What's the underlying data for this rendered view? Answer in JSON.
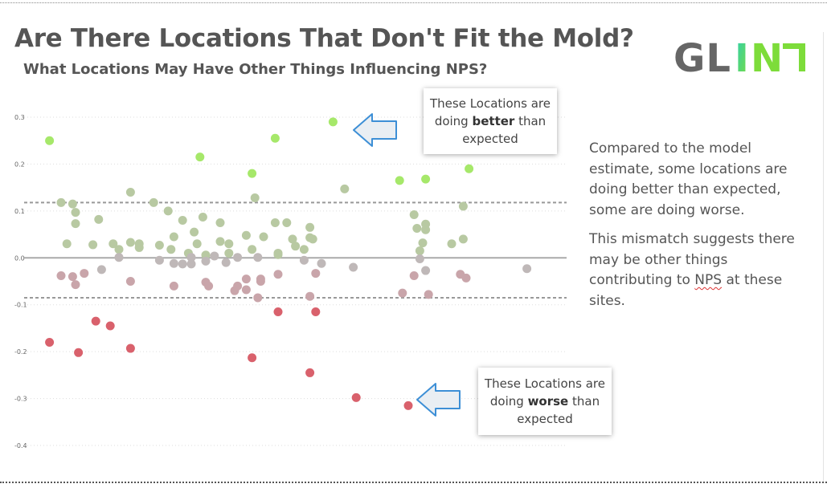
{
  "header": {
    "title": "Are There Locations That Don't Fit the Mold?",
    "subtitle": "What Locations May Have Other Things Influencing NPS?"
  },
  "logo": {
    "text": "GLINT",
    "colors": {
      "gray": "#666666",
      "green": "#7ddc3a",
      "teal": "#2bd0b5"
    }
  },
  "callouts": {
    "better": {
      "line1": "These Locations are",
      "pre": "doing ",
      "emphasis": "better",
      "post": " than",
      "line3": "expected"
    },
    "worse": {
      "line1": "These Locations are",
      "pre": "doing ",
      "emphasis": "worse",
      "post": " than",
      "line3": "expected"
    }
  },
  "explanation": {
    "paragraph1": "Compared to the model estimate, some locations are doing better than expected, some are doing worse.",
    "paragraph2_pre": "This mismatch suggests there may be other things contributing to ",
    "paragraph2_nps": "NPS",
    "paragraph2_post": " at these sites."
  },
  "colors": {
    "strong_positive": "#a6e86a",
    "mild_positive": "#b8c9a2",
    "neutral": "#bfb8b8",
    "mild_negative": "#c9a5aa",
    "strong_negative": "#d9616c",
    "reference_line": "#aaaaaa",
    "threshold_line": "#999999",
    "callout_arrow": "#3d8fd6"
  },
  "chart_data": {
    "type": "scatter",
    "title": "",
    "xlabel": "",
    "ylabel": "",
    "ylim": [
      -0.4,
      0.3
    ],
    "yticks": [
      "0.3",
      "0.2",
      "0.1",
      "0.0",
      "-0.1",
      "-0.2",
      "-0.3",
      "-0.4"
    ],
    "ytick_values": [
      0.3,
      0.2,
      0.1,
      0.0,
      -0.1,
      -0.2,
      -0.3,
      -0.4
    ],
    "xlim": [
      0,
      100
    ],
    "grid": "dotted horizontal",
    "reference_line": 0.0,
    "thresholds": [
      0.118,
      -0.085
    ],
    "points": [
      {
        "x": 3,
        "y": 0.25
      },
      {
        "x": 5,
        "y": 0.118
      },
      {
        "x": 6,
        "y": 0.03
      },
      {
        "x": 5,
        "y": -0.038
      },
      {
        "x": 7,
        "y": 0.115
      },
      {
        "x": 7.5,
        "y": 0.097
      },
      {
        "x": 7.5,
        "y": 0.073
      },
      {
        "x": 7,
        "y": -0.04
      },
      {
        "x": 7.5,
        "y": -0.057
      },
      {
        "x": 9,
        "y": -0.033
      },
      {
        "x": 3,
        "y": -0.18
      },
      {
        "x": 8,
        "y": -0.202
      },
      {
        "x": 10.5,
        "y": 0.028
      },
      {
        "x": 11.5,
        "y": 0.082
      },
      {
        "x": 12,
        "y": -0.025
      },
      {
        "x": 11,
        "y": -0.135
      },
      {
        "x": 13.5,
        "y": -0.145
      },
      {
        "x": 14,
        "y": 0.03
      },
      {
        "x": 15,
        "y": 0.018
      },
      {
        "x": 15,
        "y": 0.001
      },
      {
        "x": 17,
        "y": 0.14
      },
      {
        "x": 17,
        "y": 0.033
      },
      {
        "x": 17,
        "y": -0.05
      },
      {
        "x": 17,
        "y": -0.193
      },
      {
        "x": 18.5,
        "y": 0.03
      },
      {
        "x": 18.5,
        "y": 0.022
      },
      {
        "x": 21,
        "y": 0.118
      },
      {
        "x": 22,
        "y": 0.027
      },
      {
        "x": 22,
        "y": -0.005
      },
      {
        "x": 23.5,
        "y": 0.1
      },
      {
        "x": 24,
        "y": 0.018
      },
      {
        "x": 24.5,
        "y": 0.045
      },
      {
        "x": 24.5,
        "y": -0.012
      },
      {
        "x": 24.5,
        "y": -0.06
      },
      {
        "x": 26,
        "y": 0.08
      },
      {
        "x": 26,
        "y": -0.013
      },
      {
        "x": 27,
        "y": 0.01
      },
      {
        "x": 27.5,
        "y": 0.001
      },
      {
        "x": 27.5,
        "y": -0.013
      },
      {
        "x": 28,
        "y": 0.055
      },
      {
        "x": 28.5,
        "y": 0.03
      },
      {
        "x": 29,
        "y": 0.215
      },
      {
        "x": 29.5,
        "y": 0.087
      },
      {
        "x": 30,
        "y": 0.006
      },
      {
        "x": 30,
        "y": -0.007
      },
      {
        "x": 30,
        "y": -0.052
      },
      {
        "x": 30.5,
        "y": -0.06
      },
      {
        "x": 31.5,
        "y": 0.004
      },
      {
        "x": 32.5,
        "y": 0.075
      },
      {
        "x": 32.5,
        "y": 0.035
      },
      {
        "x": 33.5,
        "y": -0.01
      },
      {
        "x": 34,
        "y": 0.03
      },
      {
        "x": 34,
        "y": 0.01
      },
      {
        "x": 35,
        "y": -0.07
      },
      {
        "x": 35.5,
        "y": 0.001
      },
      {
        "x": 35.5,
        "y": -0.06
      },
      {
        "x": 37,
        "y": 0.048
      },
      {
        "x": 37,
        "y": -0.045
      },
      {
        "x": 37,
        "y": -0.068
      },
      {
        "x": 38,
        "y": 0.018
      },
      {
        "x": 38,
        "y": 0.18
      },
      {
        "x": 38,
        "y": -0.213
      },
      {
        "x": 38.5,
        "y": 0.128
      },
      {
        "x": 39,
        "y": -0.085
      },
      {
        "x": 39,
        "y": 0.001
      },
      {
        "x": 39.5,
        "y": -0.045
      },
      {
        "x": 39.5,
        "y": -0.05
      },
      {
        "x": 40,
        "y": 0.045
      },
      {
        "x": 42,
        "y": 0.075
      },
      {
        "x": 42,
        "y": 0.255
      },
      {
        "x": 42.5,
        "y": 0.007
      },
      {
        "x": 42.5,
        "y": 0.01
      },
      {
        "x": 42.5,
        "y": -0.035
      },
      {
        "x": 42.5,
        "y": -0.115
      },
      {
        "x": 44,
        "y": 0.075
      },
      {
        "x": 45,
        "y": 0.04
      },
      {
        "x": 45.5,
        "y": 0.025
      },
      {
        "x": 47,
        "y": 0.018
      },
      {
        "x": 47,
        "y": -0.005
      },
      {
        "x": 48,
        "y": 0.065
      },
      {
        "x": 48,
        "y": 0.043
      },
      {
        "x": 48.5,
        "y": 0.04
      },
      {
        "x": 48,
        "y": -0.082
      },
      {
        "x": 48,
        "y": -0.245
      },
      {
        "x": 49,
        "y": -0.033
      },
      {
        "x": 49,
        "y": -0.115
      },
      {
        "x": 50,
        "y": -0.012
      },
      {
        "x": 52,
        "y": 0.29
      },
      {
        "x": 54,
        "y": 0.147
      },
      {
        "x": 55.5,
        "y": -0.02
      },
      {
        "x": 56,
        "y": -0.298
      },
      {
        "x": 63.5,
        "y": 0.165
      },
      {
        "x": 64,
        "y": -0.075
      },
      {
        "x": 65,
        "y": -0.315
      },
      {
        "x": 66,
        "y": -0.038
      },
      {
        "x": 66,
        "y": 0.092
      },
      {
        "x": 66.5,
        "y": 0.063
      },
      {
        "x": 67,
        "y": 0.015
      },
      {
        "x": 67,
        "y": -0.002
      },
      {
        "x": 67.5,
        "y": 0.032
      },
      {
        "x": 68,
        "y": 0.06
      },
      {
        "x": 68,
        "y": 0.072
      },
      {
        "x": 68,
        "y": -0.027
      },
      {
        "x": 68,
        "y": 0.168
      },
      {
        "x": 68.5,
        "y": -0.078
      },
      {
        "x": 72.5,
        "y": 0.03
      },
      {
        "x": 74,
        "y": -0.035
      },
      {
        "x": 74.5,
        "y": 0.04
      },
      {
        "x": 74.5,
        "y": 0.11
      },
      {
        "x": 75,
        "y": -0.043
      },
      {
        "x": 75.5,
        "y": 0.19
      },
      {
        "x": 85.5,
        "y": -0.023
      }
    ]
  }
}
